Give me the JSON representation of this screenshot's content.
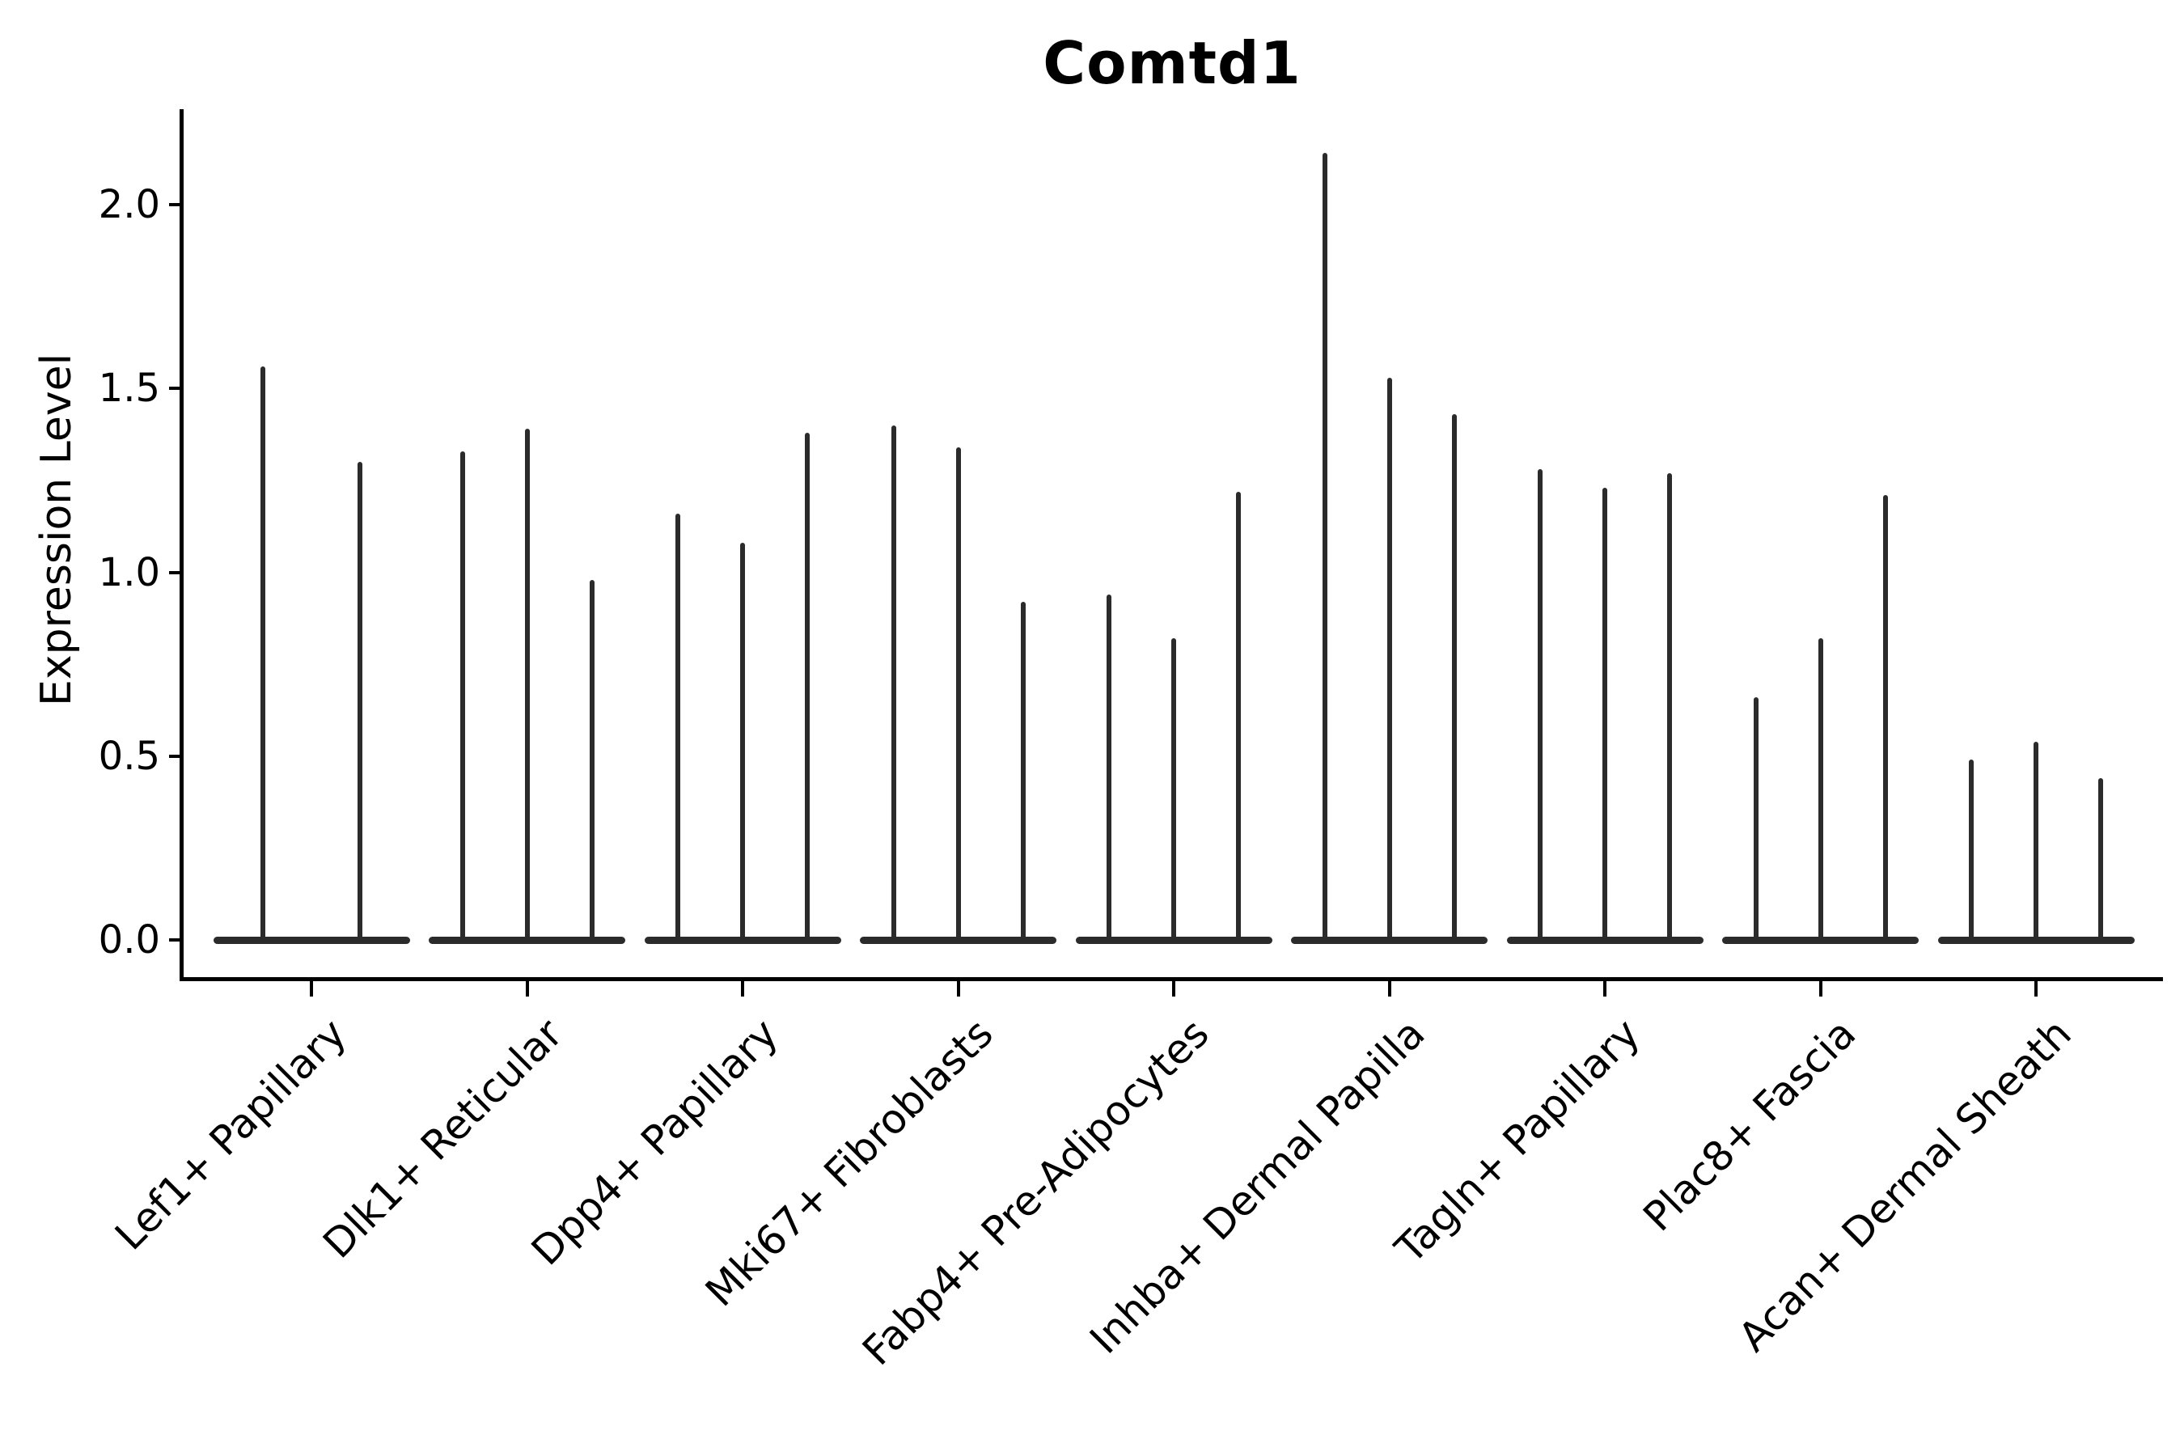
{
  "title": "Comtd1",
  "y_axis": {
    "label": "Expression Level",
    "ticks": [
      "0.0",
      "0.5",
      "1.0",
      "1.5",
      "2.0"
    ],
    "tick_values": [
      0,
      0.5,
      1.0,
      1.5,
      2.0
    ]
  },
  "chart_data": {
    "type": "violin",
    "title": "Comtd1",
    "xlabel": "",
    "ylabel": "Expression Level",
    "ylim": [
      -0.11,
      2.26
    ],
    "grid": false,
    "legend": "none",
    "note": "Each violin is needle-thin: bulk of density is a flat lens at 0 with a thin spike rising to the max expression value listed below.",
    "categories": [
      "Lef1+ Papillary",
      "Dlk1+ Reticular",
      "Dpp4+ Papillary",
      "Mki67+ Fibroblasts",
      "Fabp4+ Pre-Adipocytes",
      "Inhba+ Dermal Papilla",
      "Tagln+ Papillary",
      "Plac8+ Fascia",
      "Acan+ Dermal Sheath"
    ],
    "series": [
      {
        "category": "Lef1+ Papillary",
        "violin_max_values": [
          1.56,
          1.3
        ]
      },
      {
        "category": "Dlk1+ Reticular",
        "violin_max_values": [
          1.33,
          1.39,
          0.98
        ]
      },
      {
        "category": "Dpp4+ Papillary",
        "violin_max_values": [
          1.16,
          1.08,
          1.38
        ]
      },
      {
        "category": "Mki67+ Fibroblasts",
        "violin_max_values": [
          1.4,
          1.34,
          0.92
        ]
      },
      {
        "category": "Fabp4+ Pre-Adipocytes",
        "violin_max_values": [
          0.94,
          0.82,
          1.22
        ]
      },
      {
        "category": "Inhba+ Dermal Papilla",
        "violin_max_values": [
          2.14,
          1.53,
          1.43
        ]
      },
      {
        "category": "Tagln+ Papillary",
        "violin_max_values": [
          1.28,
          1.23,
          1.27
        ]
      },
      {
        "category": "Plac8+ Fascia",
        "violin_max_values": [
          0.66,
          0.82,
          1.21
        ]
      },
      {
        "category": "Acan+ Dermal Sheath",
        "violin_max_values": [
          0.49,
          0.54,
          0.44
        ]
      }
    ],
    "colors": {
      "violin": "#2b2b2b",
      "axis": "#000000",
      "text": "#000000"
    }
  }
}
